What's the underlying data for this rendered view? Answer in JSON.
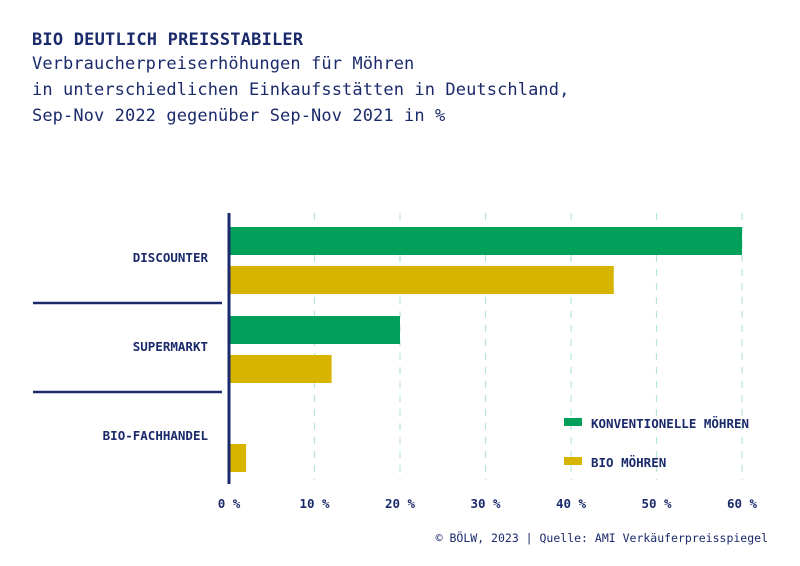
{
  "header": {
    "title": "BIO DEUTLICH PREISSTABILER",
    "subtitle_lines": [
      "Verbraucherpreiserhöhungen für Möhren",
      "in unterschiedlichen Einkaufsstätten in Deutschland,",
      "Sep-Nov 2022 gegenüber Sep-Nov 2021 in %"
    ]
  },
  "source": "© BÖLW, 2023 | Quelle: AMI Verkäuferpreisspiegel",
  "colors": {
    "konventionell": "#00a05a",
    "bio": "#d6b400",
    "axis": "#1b2a6b",
    "grid": "#b9e6d2"
  },
  "chart_data": {
    "type": "bar",
    "orientation": "horizontal",
    "categories": [
      "DISCOUNTER",
      "SUPERMARKT",
      "BIO-FACHHANDEL"
    ],
    "series": [
      {
        "name": "KONVENTIONELLE MÖHREN",
        "values": [
          60,
          20,
          null
        ]
      },
      {
        "name": "BIO MÖHREN",
        "values": [
          45,
          12,
          2
        ]
      }
    ],
    "xlim": [
      0,
      60
    ],
    "xticks": [
      0,
      10,
      20,
      30,
      40,
      50,
      60
    ],
    "xtick_labels": [
      "0 %",
      "10 %",
      "20 %",
      "30 %",
      "40 %",
      "50 %",
      "60 %"
    ],
    "grid": "vertical dashed",
    "legend_position": "bottom-right"
  }
}
